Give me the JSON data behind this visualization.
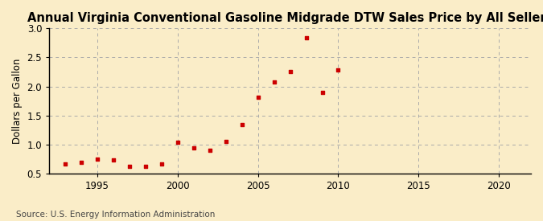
{
  "title": "Annual Virginia Conventional Gasoline Midgrade DTW Sales Price by All Sellers",
  "ylabel": "Dollars per Gallon",
  "source": "Source: U.S. Energy Information Administration",
  "fig_background_color": "#faedc8",
  "plot_background_color": "#faedc8",
  "marker_color": "#cc0000",
  "years": [
    1993,
    1994,
    1995,
    1996,
    1997,
    1998,
    1999,
    2000,
    2001,
    2002,
    2003,
    2004,
    2005,
    2006,
    2007,
    2008,
    2009,
    2010
  ],
  "values": [
    0.67,
    0.7,
    0.75,
    0.74,
    0.62,
    0.63,
    0.67,
    1.04,
    0.94,
    0.9,
    1.05,
    1.35,
    1.82,
    2.08,
    2.26,
    2.84,
    1.9,
    2.29
  ],
  "xlim": [
    1992,
    2022
  ],
  "ylim": [
    0.5,
    3.0
  ],
  "xticks": [
    1995,
    2000,
    2005,
    2010,
    2015,
    2020
  ],
  "yticks": [
    0.5,
    1.0,
    1.5,
    2.0,
    2.5,
    3.0
  ],
  "grid_color": "#aaaaaa",
  "spine_color": "#000000",
  "title_fontsize": 10.5,
  "label_fontsize": 8.5,
  "tick_fontsize": 8.5,
  "source_fontsize": 7.5
}
